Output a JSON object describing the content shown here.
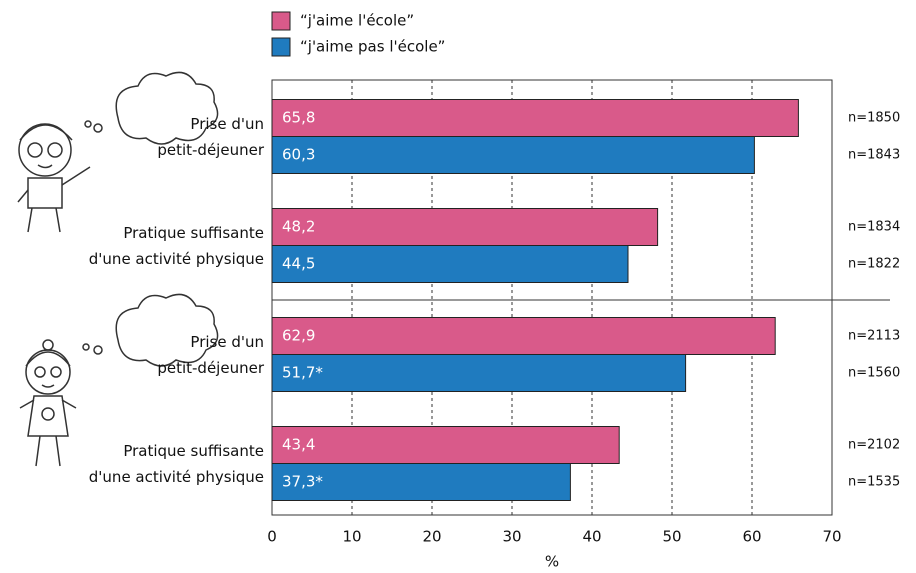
{
  "chart_data": {
    "type": "bar",
    "orientation": "horizontal",
    "categories": [
      "Prise d'un\npetit-déjeuner",
      "Pratique suffisante\nd'une activité physique",
      "Prise d'un\npetit-déjeuner",
      "Pratique suffisante\nd'une activité physique"
    ],
    "series": [
      {
        "name": "“j'aime l'école”",
        "color": "#d95a8a",
        "values": [
          65.8,
          48.2,
          62.9,
          43.4
        ],
        "value_labels": [
          "65,8",
          "48,2",
          "62,9",
          "43,4"
        ],
        "n_labels": [
          "n=1850",
          "n=1834",
          "n=2113",
          "n=2102"
        ]
      },
      {
        "name": "“j'aime pas l'école”",
        "color": "#1f7bbf",
        "values": [
          60.3,
          44.5,
          51.7,
          37.3
        ],
        "value_labels": [
          "60,3",
          "44,5",
          "51,7*",
          "37,3*"
        ],
        "n_labels": [
          "n=1843",
          "n=1822",
          "n=1560",
          "n=1535"
        ]
      }
    ],
    "xlabel": "%",
    "xlim": [
      0,
      70
    ],
    "xticks": [
      0,
      10,
      20,
      30,
      40,
      50,
      60,
      70
    ],
    "grid": true
  }
}
